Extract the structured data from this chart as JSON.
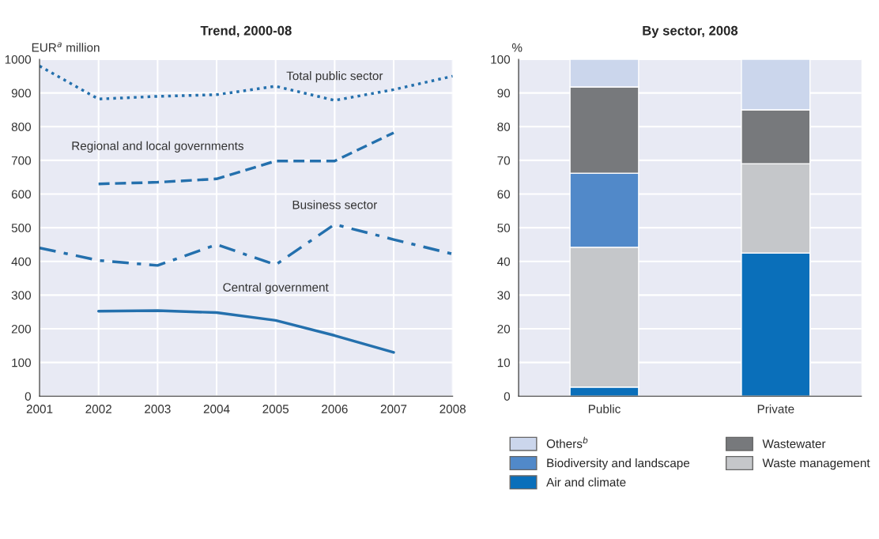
{
  "chart_data": [
    {
      "type": "line",
      "title": "Trend, 2000-08",
      "ylabel": "EUR$^{a}$ million",
      "x": [
        2001,
        2002,
        2003,
        2004,
        2005,
        2006,
        2007,
        2008
      ],
      "xlim": [
        2001,
        2008
      ],
      "xticks": [
        2001,
        2002,
        2003,
        2004,
        2005,
        2006,
        2007,
        2008
      ],
      "ylim": [
        0,
        1000
      ],
      "yticks": [
        0,
        100,
        200,
        300,
        400,
        500,
        600,
        700,
        800,
        900,
        1000
      ],
      "grid": true,
      "legend": false,
      "series": [
        {
          "name": "Total public sector",
          "color": "#2470ad",
          "line_style": "dotted",
          "values": [
            980,
            882,
            890,
            895,
            920,
            878,
            910,
            950
          ]
        },
        {
          "name": "Regional and local governments",
          "color": "#2470ad",
          "line_style": "dashed",
          "values": [
            null,
            630,
            635,
            645,
            698,
            698,
            782,
            null
          ]
        },
        {
          "name": "Business sector",
          "color": "#2470ad",
          "line_style": "dashdot",
          "values": [
            440,
            403,
            388,
            450,
            390,
            510,
            465,
            422
          ]
        },
        {
          "name": "Central government",
          "color": "#2470ad",
          "line_style": "solid",
          "values": [
            null,
            252,
            254,
            248,
            225,
            180,
            130,
            null
          ]
        }
      ]
    },
    {
      "type": "bar",
      "stacked": true,
      "title": "By sector, 2008",
      "ylabel": "%",
      "categories": [
        "Public",
        "Private"
      ],
      "ylim": [
        0,
        100
      ],
      "yticks": [
        0,
        10,
        20,
        30,
        40,
        50,
        60,
        70,
        80,
        90,
        100
      ],
      "grid": "y",
      "legend": "bottom",
      "series": [
        {
          "name": "Air and climate",
          "color": "#0a6fba",
          "values": [
            2.7,
            42.5
          ]
        },
        {
          "name": "Waste management",
          "color": "#c5c7ca",
          "values": [
            41.5,
            26.5
          ]
        },
        {
          "name": "Biodiversity and landscape",
          "color": "#5189c9",
          "values": [
            22,
            0
          ]
        },
        {
          "name": "Wastewater",
          "color": "#77797c",
          "values": [
            25.6,
            16
          ]
        },
        {
          "name": "Others$^{b}$",
          "color": "#cbd6ec",
          "values": [
            8.2,
            15
          ]
        }
      ]
    }
  ]
}
